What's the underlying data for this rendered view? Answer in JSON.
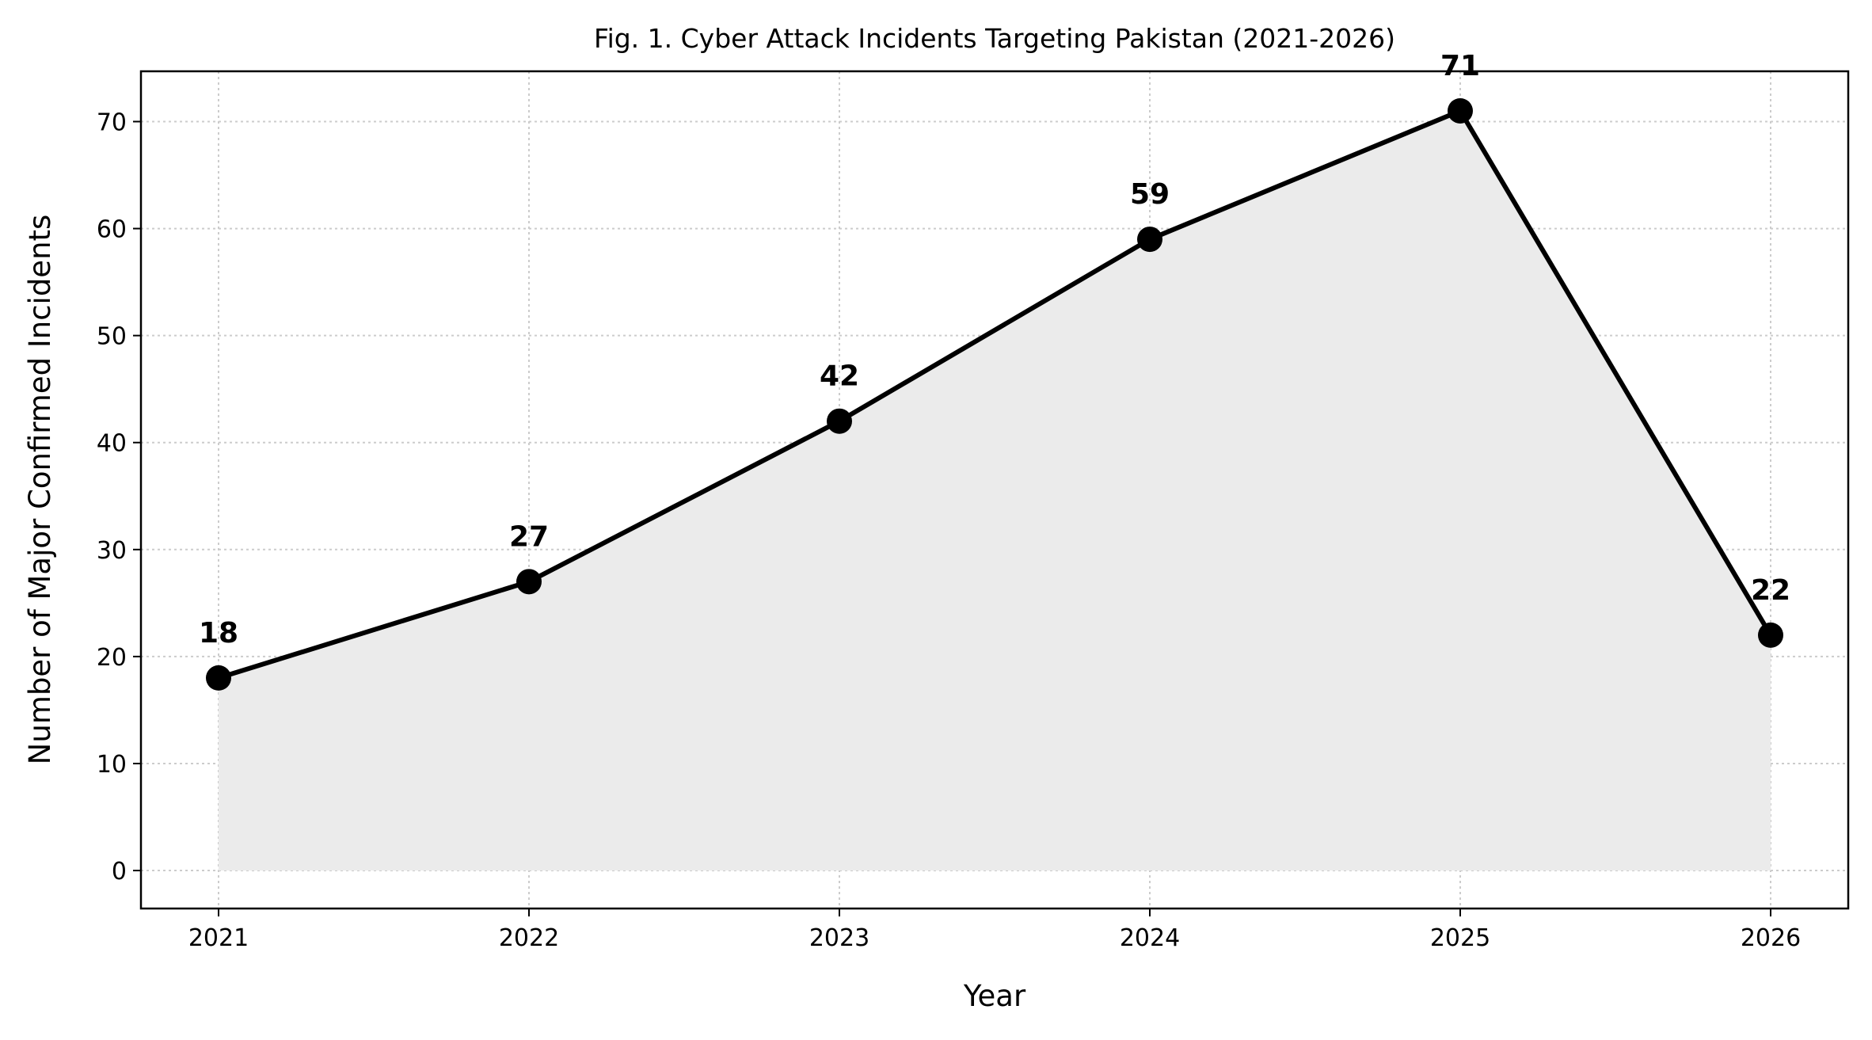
{
  "chart_data": {
    "type": "line",
    "title": "Fig. 1. Cyber Attack Incidents Targeting Pakistan (2021-2026)",
    "xlabel": "Year",
    "ylabel": "Number of Major Confirmed Incidents",
    "x": [
      2021,
      2022,
      2023,
      2024,
      2025,
      2026
    ],
    "x_tick_labels": [
      "2021",
      "2022",
      "2023",
      "2024",
      "2025",
      "2026"
    ],
    "values": [
      18,
      27,
      42,
      59,
      71,
      22
    ],
    "data_labels": [
      "18",
      "27",
      "42",
      "59",
      "71",
      "22"
    ],
    "y_ticks": [
      0,
      10,
      20,
      30,
      40,
      50,
      60,
      70
    ],
    "y_tick_labels": [
      "0",
      "10",
      "20",
      "30",
      "40",
      "50",
      "60",
      "70"
    ],
    "xlim": [
      2020.75,
      2026.25
    ],
    "ylim": [
      -3.55,
      74.7
    ],
    "grid": true,
    "fill_under": true,
    "line_color": "#000000",
    "fill_color": "#ebebeb",
    "grid_color": "#cccccc"
  }
}
